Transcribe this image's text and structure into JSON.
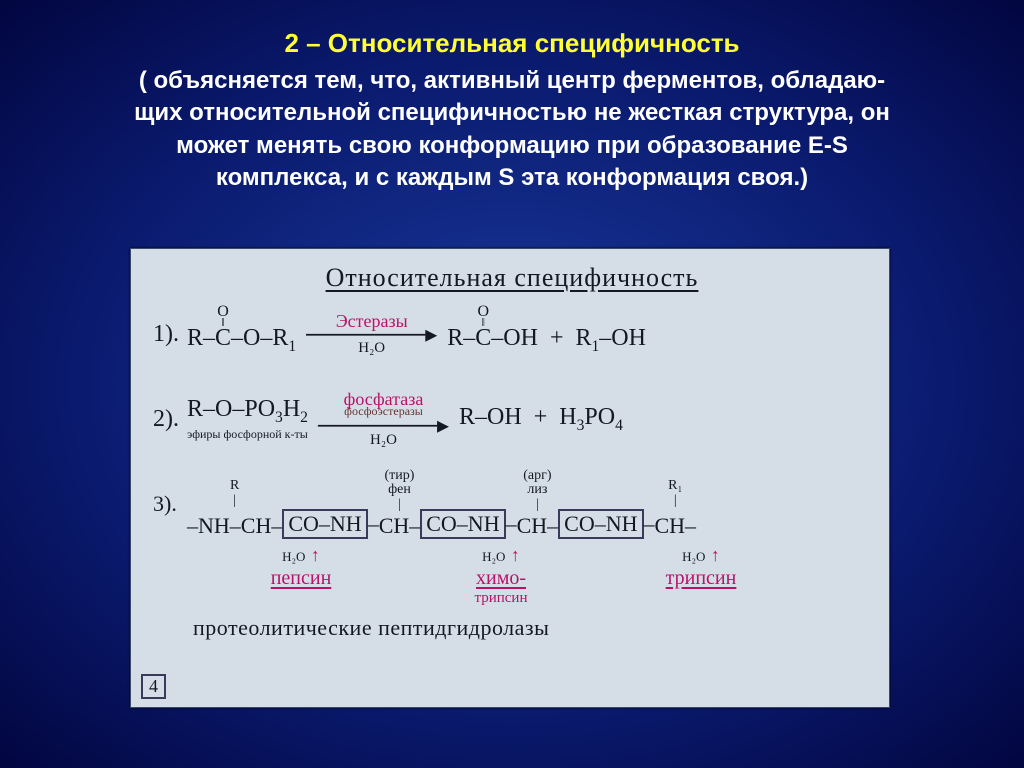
{
  "header": {
    "title": "2 – Относительная специфичность",
    "para1": "( объясняется тем, что, активный центр ферментов, обладаю-",
    "para2": "щих относительной специфичностью не жесткая структура, он",
    "para3": "может менять свою конформацию при образование E-S",
    "para4": "комплекса, и с каждым S эта конформация своя.)",
    "para5": ""
  },
  "colors": {
    "title": "#ffff33",
    "body_text": "#ffffff",
    "bg_center": "#1a3a9e",
    "bg_edge": "#020640",
    "figure_bg": "#d5dee6",
    "ink": "#141822",
    "enzyme_pink": "#b8126a"
  },
  "fonts": {
    "heading_size_pt": 20,
    "body_size_pt": 18,
    "handwriting_family": "Comic Sans MS / cursive",
    "handwriting_size_pt": 18
  },
  "figure": {
    "title": "Относительная специфичность",
    "rxn1": {
      "num": "1).",
      "lhs": "R–C(=O)–O–R1",
      "enzyme": "Эстеразы",
      "below": "H₂O",
      "rhs": "R–C(=O)–OH + R1–OH"
    },
    "rxn2": {
      "num": "2).",
      "lhs": "R–O–PO3H2",
      "lhs_note": "эфиры фосфорной к-ты",
      "enzyme": "фосфатаза",
      "enzyme_sub": "фосфоэстеразы",
      "below": "H₂O",
      "rhs": "R–OH + H3PO4"
    },
    "rxn3": {
      "num": "3).",
      "h2o": "H₂O",
      "residues": [
        {
          "top": "R\n|"
        },
        {
          "top": "(тир)\nфен\n|"
        },
        {
          "top": "(арг)\nлиз\n|"
        },
        {
          "top": "R₁\n|"
        }
      ],
      "cleavages": [
        {
          "name": "пепсин",
          "sub": ""
        },
        {
          "name": "химо-",
          "sub": "трипсин"
        },
        {
          "name": "трипсин",
          "sub": ""
        }
      ]
    },
    "footer": "протеолитические пептидгидролазы",
    "corner": "4"
  }
}
